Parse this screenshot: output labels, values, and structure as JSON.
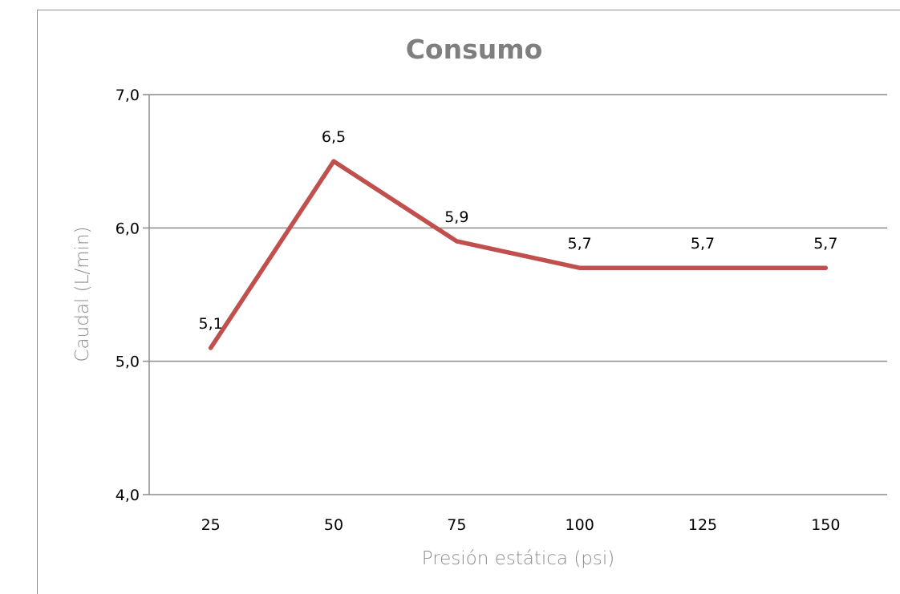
{
  "chart_data": {
    "type": "line",
    "title": "Consumo",
    "xlabel": "Presión estática (psi)",
    "ylabel": "Caudal (L/min)",
    "categories": [
      "25",
      "50",
      "75",
      "100",
      "125",
      "150"
    ],
    "series": [
      {
        "values": [
          5.1,
          6.5,
          5.9,
          5.7,
          5.7,
          5.7
        ],
        "data_labels": [
          "5,1",
          "6,5",
          "5,9",
          "5,7",
          "5,7",
          "5,7"
        ],
        "color": "#c0504d"
      }
    ],
    "ylim": [
      4.0,
      7.0
    ],
    "yticks": [
      4.0,
      5.0,
      6.0,
      7.0
    ],
    "ytick_labels": [
      "4,0",
      "5,0",
      "6,0",
      "7,0"
    ],
    "grid": true,
    "legend": "none"
  },
  "colors": {
    "gridline": "#8c8c8c",
    "title": "#7f7f7f",
    "axis_label": "#8c8c8c"
  }
}
